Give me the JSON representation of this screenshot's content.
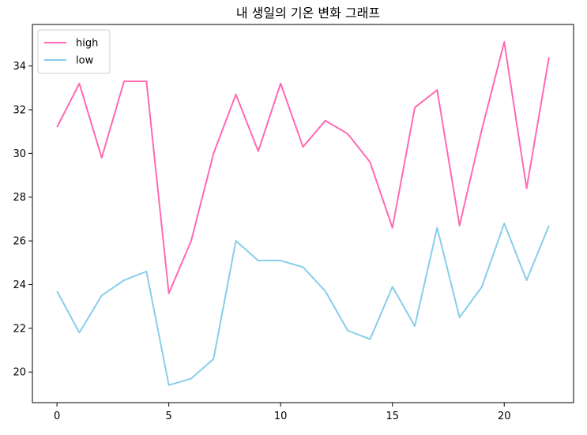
{
  "chart_data": {
    "type": "line",
    "title": "내 생일의 기온 변화 그래프",
    "xlabel": "",
    "ylabel": "",
    "xlim": [
      -1.1,
      23.1
    ],
    "ylim": [
      18.6,
      35.9
    ],
    "x_ticks": [
      0,
      5,
      10,
      15,
      20
    ],
    "y_ticks": [
      20,
      22,
      24,
      26,
      28,
      30,
      32,
      34
    ],
    "grid": false,
    "legend_position": "top-left",
    "x": [
      0,
      1,
      2,
      3,
      4,
      5,
      6,
      7,
      8,
      9,
      10,
      11,
      12,
      13,
      14,
      15,
      16,
      17,
      18,
      19,
      20,
      21,
      22
    ],
    "series": [
      {
        "name": "high",
        "color": "#ff69b4",
        "values": [
          31.2,
          33.2,
          29.8,
          33.3,
          33.3,
          23.6,
          26.0,
          30.0,
          32.7,
          30.1,
          33.2,
          30.3,
          31.5,
          30.9,
          29.6,
          26.6,
          32.1,
          32.9,
          26.7,
          31.1,
          35.1,
          28.4,
          34.4
        ]
      },
      {
        "name": "low",
        "color": "#87ceeb",
        "values": [
          23.7,
          21.8,
          23.5,
          24.2,
          24.6,
          19.4,
          19.7,
          20.6,
          26.0,
          25.1,
          25.1,
          24.8,
          23.7,
          21.9,
          21.5,
          23.9,
          22.1,
          26.6,
          22.5,
          23.9,
          26.8,
          24.2,
          26.7
        ]
      }
    ]
  }
}
